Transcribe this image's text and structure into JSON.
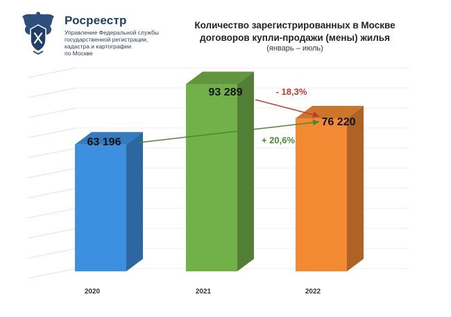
{
  "header": {
    "org_name": "Росреестр",
    "org_subtitle_lines": [
      "Управление Федеральной службы",
      "государственной регистрации,",
      "кадастра и картографии",
      "по Москве"
    ],
    "chart_title_line1": "Количество зарегистрированных в Москве",
    "chart_title_line2": "договоров купли-продажи (мены) жилья",
    "chart_subtitle": "(январь – июль)"
  },
  "chart_data": {
    "type": "bar",
    "title": "Количество зарегистрированных в Москве договоров купли-продажи (мены) жилья",
    "subtitle": "(январь – июль)",
    "categories": [
      "2020",
      "2021",
      "2022"
    ],
    "values": [
      63196,
      93289,
      76220
    ],
    "value_labels": [
      "63 196",
      "93 289",
      "76 220"
    ],
    "colors": [
      "#3d8fe0",
      "#72b04a",
      "#f28a34"
    ],
    "ylim": [
      0,
      100000
    ],
    "grid": true,
    "annotations": [
      {
        "text": "- 18,3%",
        "from": "2021",
        "to": "2022",
        "color": "#c0392b"
      },
      {
        "text": "+ 20,6%",
        "from": "2020",
        "to": "2022",
        "color": "#4a8a2e"
      }
    ],
    "xlabel": "",
    "ylabel": ""
  }
}
